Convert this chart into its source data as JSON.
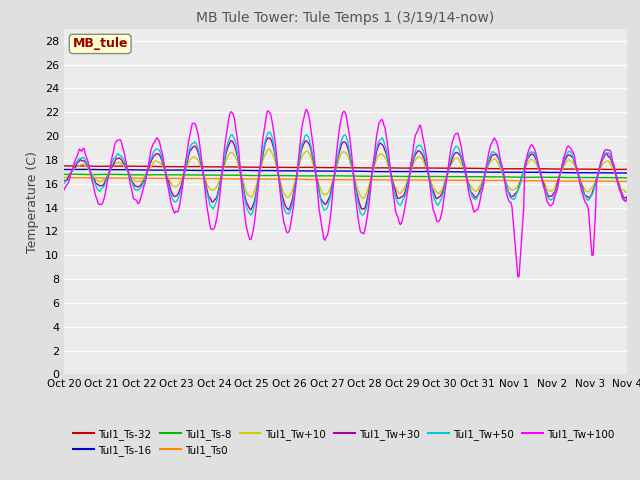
{
  "title": "MB Tule Tower: Tule Temps 1 (3/19/14-now)",
  "ylabel": "Temperature (C)",
  "ylim": [
    0,
    29
  ],
  "yticks": [
    0,
    2,
    4,
    6,
    8,
    10,
    12,
    14,
    16,
    18,
    20,
    22,
    24,
    26,
    28
  ],
  "x_labels": [
    "Oct 20",
    "Oct 21",
    "Oct 22",
    "Oct 23",
    "Oct 24",
    "Oct 25",
    "Oct 26",
    "Oct 27",
    "Oct 28",
    "Oct 29",
    "Oct 30",
    "Oct 31",
    "Nov 1",
    "Nov 2",
    "Nov 3",
    "Nov 4"
  ],
  "legend_box_label": "MB_tule",
  "series_colors": {
    "Tul1_Ts-32": "#cc0000",
    "Tul1_Ts-16": "#0000cc",
    "Tul1_Ts-8": "#00bb00",
    "Tul1_Ts0": "#ff8800",
    "Tul1_Tw+10": "#cccc00",
    "Tul1_Tw+30": "#aa00aa",
    "Tul1_Tw+50": "#00cccc",
    "Tul1_Tw+100": "#ff00ff"
  },
  "background_color": "#e0e0e0",
  "plot_bg_color": "#ececec",
  "grid_color": "#ffffff",
  "title_color": "#555555",
  "n_points": 480
}
